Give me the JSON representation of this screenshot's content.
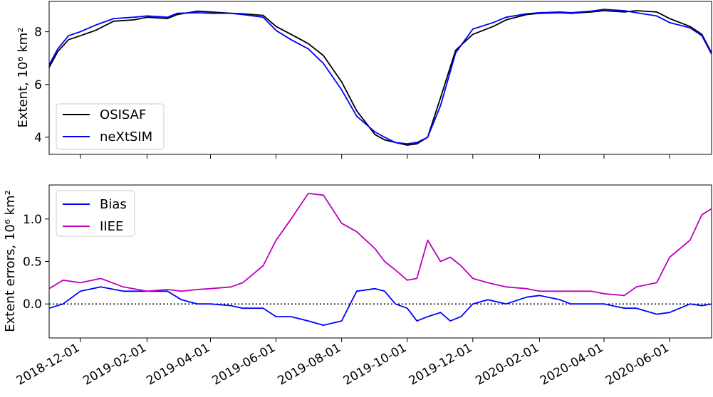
{
  "chart_data": [
    {
      "type": "line",
      "ylabel": "Extent, 10⁶ km²",
      "ylim": [
        3.35,
        9.15
      ],
      "yticks": [
        4,
        6,
        8
      ],
      "x_date_range": [
        "2018-11-02",
        "2020-07-10"
      ],
      "legend": {
        "location": "lower-left",
        "entries": [
          "OSISAF",
          "neXtSIM"
        ]
      },
      "series": [
        {
          "name": "OSISAF",
          "color": "#000000",
          "x": [
            "2018-11-02",
            "2018-11-10",
            "2018-11-20",
            "2018-12-01",
            "2018-12-15",
            "2019-01-01",
            "2019-01-20",
            "2019-02-01",
            "2019-02-20",
            "2019-03-01",
            "2019-03-20",
            "2019-04-01",
            "2019-04-20",
            "2019-05-01",
            "2019-05-20",
            "2019-06-01",
            "2019-06-15",
            "2019-07-01",
            "2019-07-15",
            "2019-08-01",
            "2019-08-15",
            "2019-09-01",
            "2019-09-10",
            "2019-09-20",
            "2019-10-01",
            "2019-10-10",
            "2019-10-20",
            "2019-11-01",
            "2019-11-15",
            "2019-12-01",
            "2019-12-20",
            "2020-01-01",
            "2020-01-20",
            "2020-02-01",
            "2020-02-20",
            "2020-03-01",
            "2020-03-20",
            "2020-04-01",
            "2020-04-20",
            "2020-05-01",
            "2020-05-20",
            "2020-06-01",
            "2020-06-20",
            "2020-07-01",
            "2020-07-10"
          ],
          "values": [
            6.65,
            7.25,
            7.7,
            7.85,
            8.05,
            8.4,
            8.45,
            8.55,
            8.5,
            8.65,
            8.78,
            8.75,
            8.7,
            8.68,
            8.62,
            8.2,
            7.9,
            7.55,
            7.1,
            6.1,
            5.0,
            4.1,
            3.9,
            3.8,
            3.7,
            3.75,
            4.0,
            5.5,
            7.3,
            7.9,
            8.2,
            8.45,
            8.65,
            8.7,
            8.72,
            8.7,
            8.75,
            8.8,
            8.75,
            8.8,
            8.75,
            8.5,
            8.2,
            7.9,
            7.2
          ]
        },
        {
          "name": "neXtSIM",
          "color": "#0000ff",
          "x": [
            "2018-11-02",
            "2018-11-10",
            "2018-11-20",
            "2018-12-01",
            "2018-12-15",
            "2019-01-01",
            "2019-01-20",
            "2019-02-01",
            "2019-02-20",
            "2019-03-01",
            "2019-03-20",
            "2019-04-01",
            "2019-04-20",
            "2019-05-01",
            "2019-05-20",
            "2019-06-01",
            "2019-06-15",
            "2019-07-01",
            "2019-07-15",
            "2019-08-01",
            "2019-08-15",
            "2019-09-01",
            "2019-09-10",
            "2019-09-20",
            "2019-10-01",
            "2019-10-10",
            "2019-10-20",
            "2019-11-01",
            "2019-11-15",
            "2019-12-01",
            "2019-12-20",
            "2020-01-01",
            "2020-01-20",
            "2020-02-01",
            "2020-02-20",
            "2020-03-01",
            "2020-03-20",
            "2020-04-01",
            "2020-04-20",
            "2020-05-01",
            "2020-05-20",
            "2020-06-01",
            "2020-06-20",
            "2020-07-01",
            "2020-07-10"
          ],
          "values": [
            6.75,
            7.35,
            7.85,
            8.0,
            8.25,
            8.5,
            8.55,
            8.6,
            8.55,
            8.7,
            8.72,
            8.7,
            8.7,
            8.65,
            8.55,
            8.05,
            7.7,
            7.35,
            6.8,
            5.8,
            4.8,
            4.2,
            4.0,
            3.8,
            3.75,
            3.8,
            4.0,
            5.2,
            7.2,
            8.1,
            8.35,
            8.55,
            8.68,
            8.72,
            8.75,
            8.72,
            8.78,
            8.85,
            8.8,
            8.72,
            8.6,
            8.35,
            8.15,
            7.85,
            7.15
          ]
        }
      ]
    },
    {
      "type": "line",
      "ylabel": "Extent errors, 10⁶ km²",
      "ylim": [
        -0.4,
        1.4
      ],
      "yticks": [
        0.0,
        0.5,
        1.0
      ],
      "ytick_labels": [
        "0.0",
        "0.5",
        "1.0"
      ],
      "x_date_range": [
        "2018-11-02",
        "2020-07-10"
      ],
      "reference_line": {
        "y": 0,
        "style": "dotted"
      },
      "legend": {
        "location": "upper-left",
        "entries": [
          "Bias",
          "IIEE"
        ]
      },
      "series": [
        {
          "name": "Bias",
          "color": "#0000ff",
          "x": [
            "2018-11-02",
            "2018-11-15",
            "2018-12-01",
            "2018-12-20",
            "2019-01-10",
            "2019-02-01",
            "2019-02-20",
            "2019-03-05",
            "2019-03-20",
            "2019-04-01",
            "2019-04-20",
            "2019-05-01",
            "2019-05-20",
            "2019-06-01",
            "2019-06-15",
            "2019-07-01",
            "2019-07-15",
            "2019-08-01",
            "2019-08-15",
            "2019-09-01",
            "2019-09-10",
            "2019-09-20",
            "2019-10-01",
            "2019-10-10",
            "2019-10-20",
            "2019-11-01",
            "2019-11-10",
            "2019-11-20",
            "2019-12-01",
            "2019-12-15",
            "2020-01-01",
            "2020-01-20",
            "2020-02-01",
            "2020-02-20",
            "2020-03-01",
            "2020-03-20",
            "2020-04-01",
            "2020-04-20",
            "2020-05-01",
            "2020-05-20",
            "2020-06-01",
            "2020-06-20",
            "2020-07-01",
            "2020-07-10"
          ],
          "values": [
            -0.05,
            0.0,
            0.15,
            0.2,
            0.15,
            0.15,
            0.15,
            0.05,
            0.0,
            0.0,
            -0.02,
            -0.05,
            -0.05,
            -0.15,
            -0.15,
            -0.2,
            -0.25,
            -0.2,
            0.15,
            0.18,
            0.15,
            0.0,
            -0.05,
            -0.2,
            -0.15,
            -0.1,
            -0.2,
            -0.15,
            0.0,
            0.05,
            0.0,
            0.08,
            0.1,
            0.05,
            0.0,
            0.0,
            0.0,
            -0.05,
            -0.05,
            -0.12,
            -0.1,
            0.0,
            -0.02,
            0.0
          ]
        },
        {
          "name": "IIEE",
          "color": "#bf00bf",
          "x": [
            "2018-11-02",
            "2018-11-15",
            "2018-12-01",
            "2018-12-20",
            "2019-01-10",
            "2019-02-01",
            "2019-02-20",
            "2019-03-05",
            "2019-03-20",
            "2019-04-01",
            "2019-04-20",
            "2019-05-01",
            "2019-05-20",
            "2019-06-01",
            "2019-06-15",
            "2019-07-01",
            "2019-07-15",
            "2019-08-01",
            "2019-08-15",
            "2019-09-01",
            "2019-09-10",
            "2019-09-20",
            "2019-10-01",
            "2019-10-10",
            "2019-10-20",
            "2019-11-01",
            "2019-11-10",
            "2019-11-20",
            "2019-12-01",
            "2019-12-15",
            "2020-01-01",
            "2020-01-20",
            "2020-02-01",
            "2020-02-20",
            "2020-03-01",
            "2020-03-20",
            "2020-04-01",
            "2020-04-20",
            "2020-05-01",
            "2020-05-20",
            "2020-06-01",
            "2020-06-20",
            "2020-07-01",
            "2020-07-10"
          ],
          "values": [
            0.18,
            0.28,
            0.25,
            0.3,
            0.2,
            0.15,
            0.17,
            0.15,
            0.17,
            0.18,
            0.2,
            0.25,
            0.45,
            0.75,
            1.0,
            1.3,
            1.28,
            0.95,
            0.85,
            0.65,
            0.5,
            0.4,
            0.28,
            0.3,
            0.75,
            0.5,
            0.55,
            0.45,
            0.3,
            0.25,
            0.2,
            0.18,
            0.15,
            0.15,
            0.15,
            0.15,
            0.12,
            0.1,
            0.2,
            0.25,
            0.55,
            0.75,
            1.05,
            1.12
          ]
        }
      ]
    }
  ],
  "x_tick_labels": [
    "2018-12-01",
    "2019-02-01",
    "2019-04-01",
    "2019-06-01",
    "2019-08-01",
    "2019-10-01",
    "2019-12-01",
    "2020-02-01",
    "2020-04-01",
    "2020-06-01"
  ]
}
